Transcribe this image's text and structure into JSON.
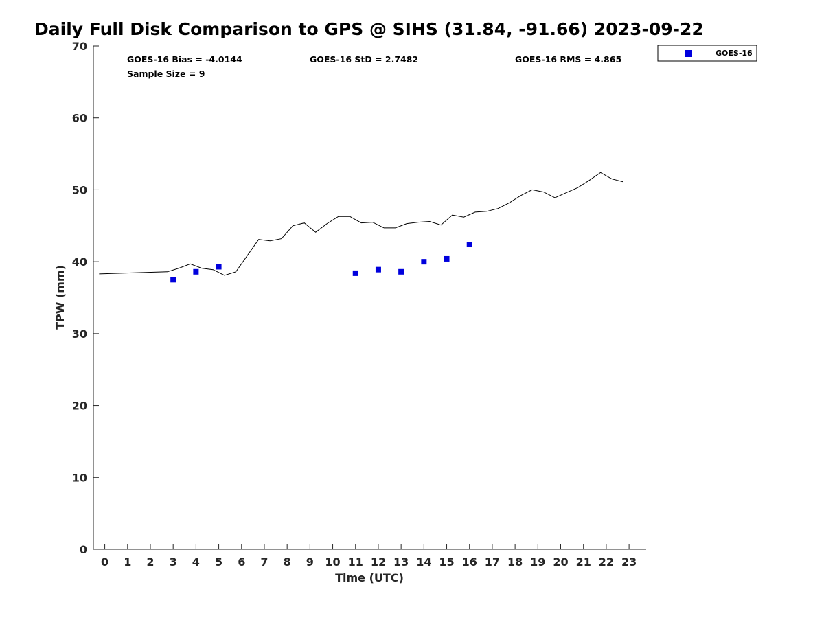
{
  "chart_data": {
    "type": "scatter",
    "title": "Daily Full Disk Comparison to GPS @ SIHS (31.84, -91.66) 2023-09-22",
    "xlabel": "Time (UTC)",
    "ylabel": "TPW (mm)",
    "xlim": [
      -0.5,
      23.75
    ],
    "ylim": [
      0,
      70
    ],
    "x_ticks": [
      0,
      1,
      2,
      3,
      4,
      5,
      6,
      7,
      8,
      9,
      10,
      11,
      12,
      13,
      14,
      15,
      16,
      17,
      18,
      19,
      20,
      21,
      22,
      23
    ],
    "y_ticks": [
      0,
      10,
      20,
      30,
      40,
      50,
      60,
      70
    ],
    "grid": false,
    "legend_position": "top-right, outside plot",
    "stats": {
      "bias": "GOES-16 Bias = -4.0144",
      "std": "GOES-16 StD = 2.7482",
      "rms": "GOES-16 RMS = 4.865",
      "sample": "Sample Size = 9"
    },
    "series": [
      {
        "kind": "line",
        "color": "#000000",
        "x": [
          -0.25,
          2.75,
          3.25,
          3.75,
          4.25,
          4.75,
          5.25,
          5.75,
          6.75,
          7.25,
          7.75,
          8.25,
          8.75,
          9.25,
          9.75,
          10.25,
          10.75,
          11.25,
          11.75,
          12.25,
          12.75,
          13.25,
          13.75,
          14.25,
          14.75,
          15.25,
          15.75,
          16.25,
          16.75,
          17.25,
          17.75,
          18.25,
          18.75,
          19.25,
          19.75,
          20.25,
          20.75,
          21.25,
          21.75,
          22.25,
          22.75
        ],
        "y": [
          38.3,
          38.6,
          39.1,
          39.7,
          39.1,
          38.9,
          38.1,
          38.6,
          43.1,
          42.9,
          43.2,
          45.0,
          45.4,
          44.1,
          45.3,
          46.3,
          46.3,
          45.4,
          45.5,
          44.7,
          44.7,
          45.3,
          45.5,
          45.6,
          45.1,
          46.5,
          46.2,
          46.9,
          47.0,
          47.4,
          48.2,
          49.2,
          50.0,
          49.7,
          48.9,
          49.6,
          50.3,
          51.3,
          52.4,
          51.5,
          51.1
        ]
      },
      {
        "kind": "points",
        "name": "GOES-16",
        "color": "#0000dd",
        "x": [
          3,
          4,
          5,
          11,
          12,
          13,
          14,
          15,
          16
        ],
        "y": [
          37.5,
          38.6,
          39.3,
          38.4,
          38.9,
          38.6,
          40.0,
          40.4,
          42.4
        ]
      }
    ]
  }
}
